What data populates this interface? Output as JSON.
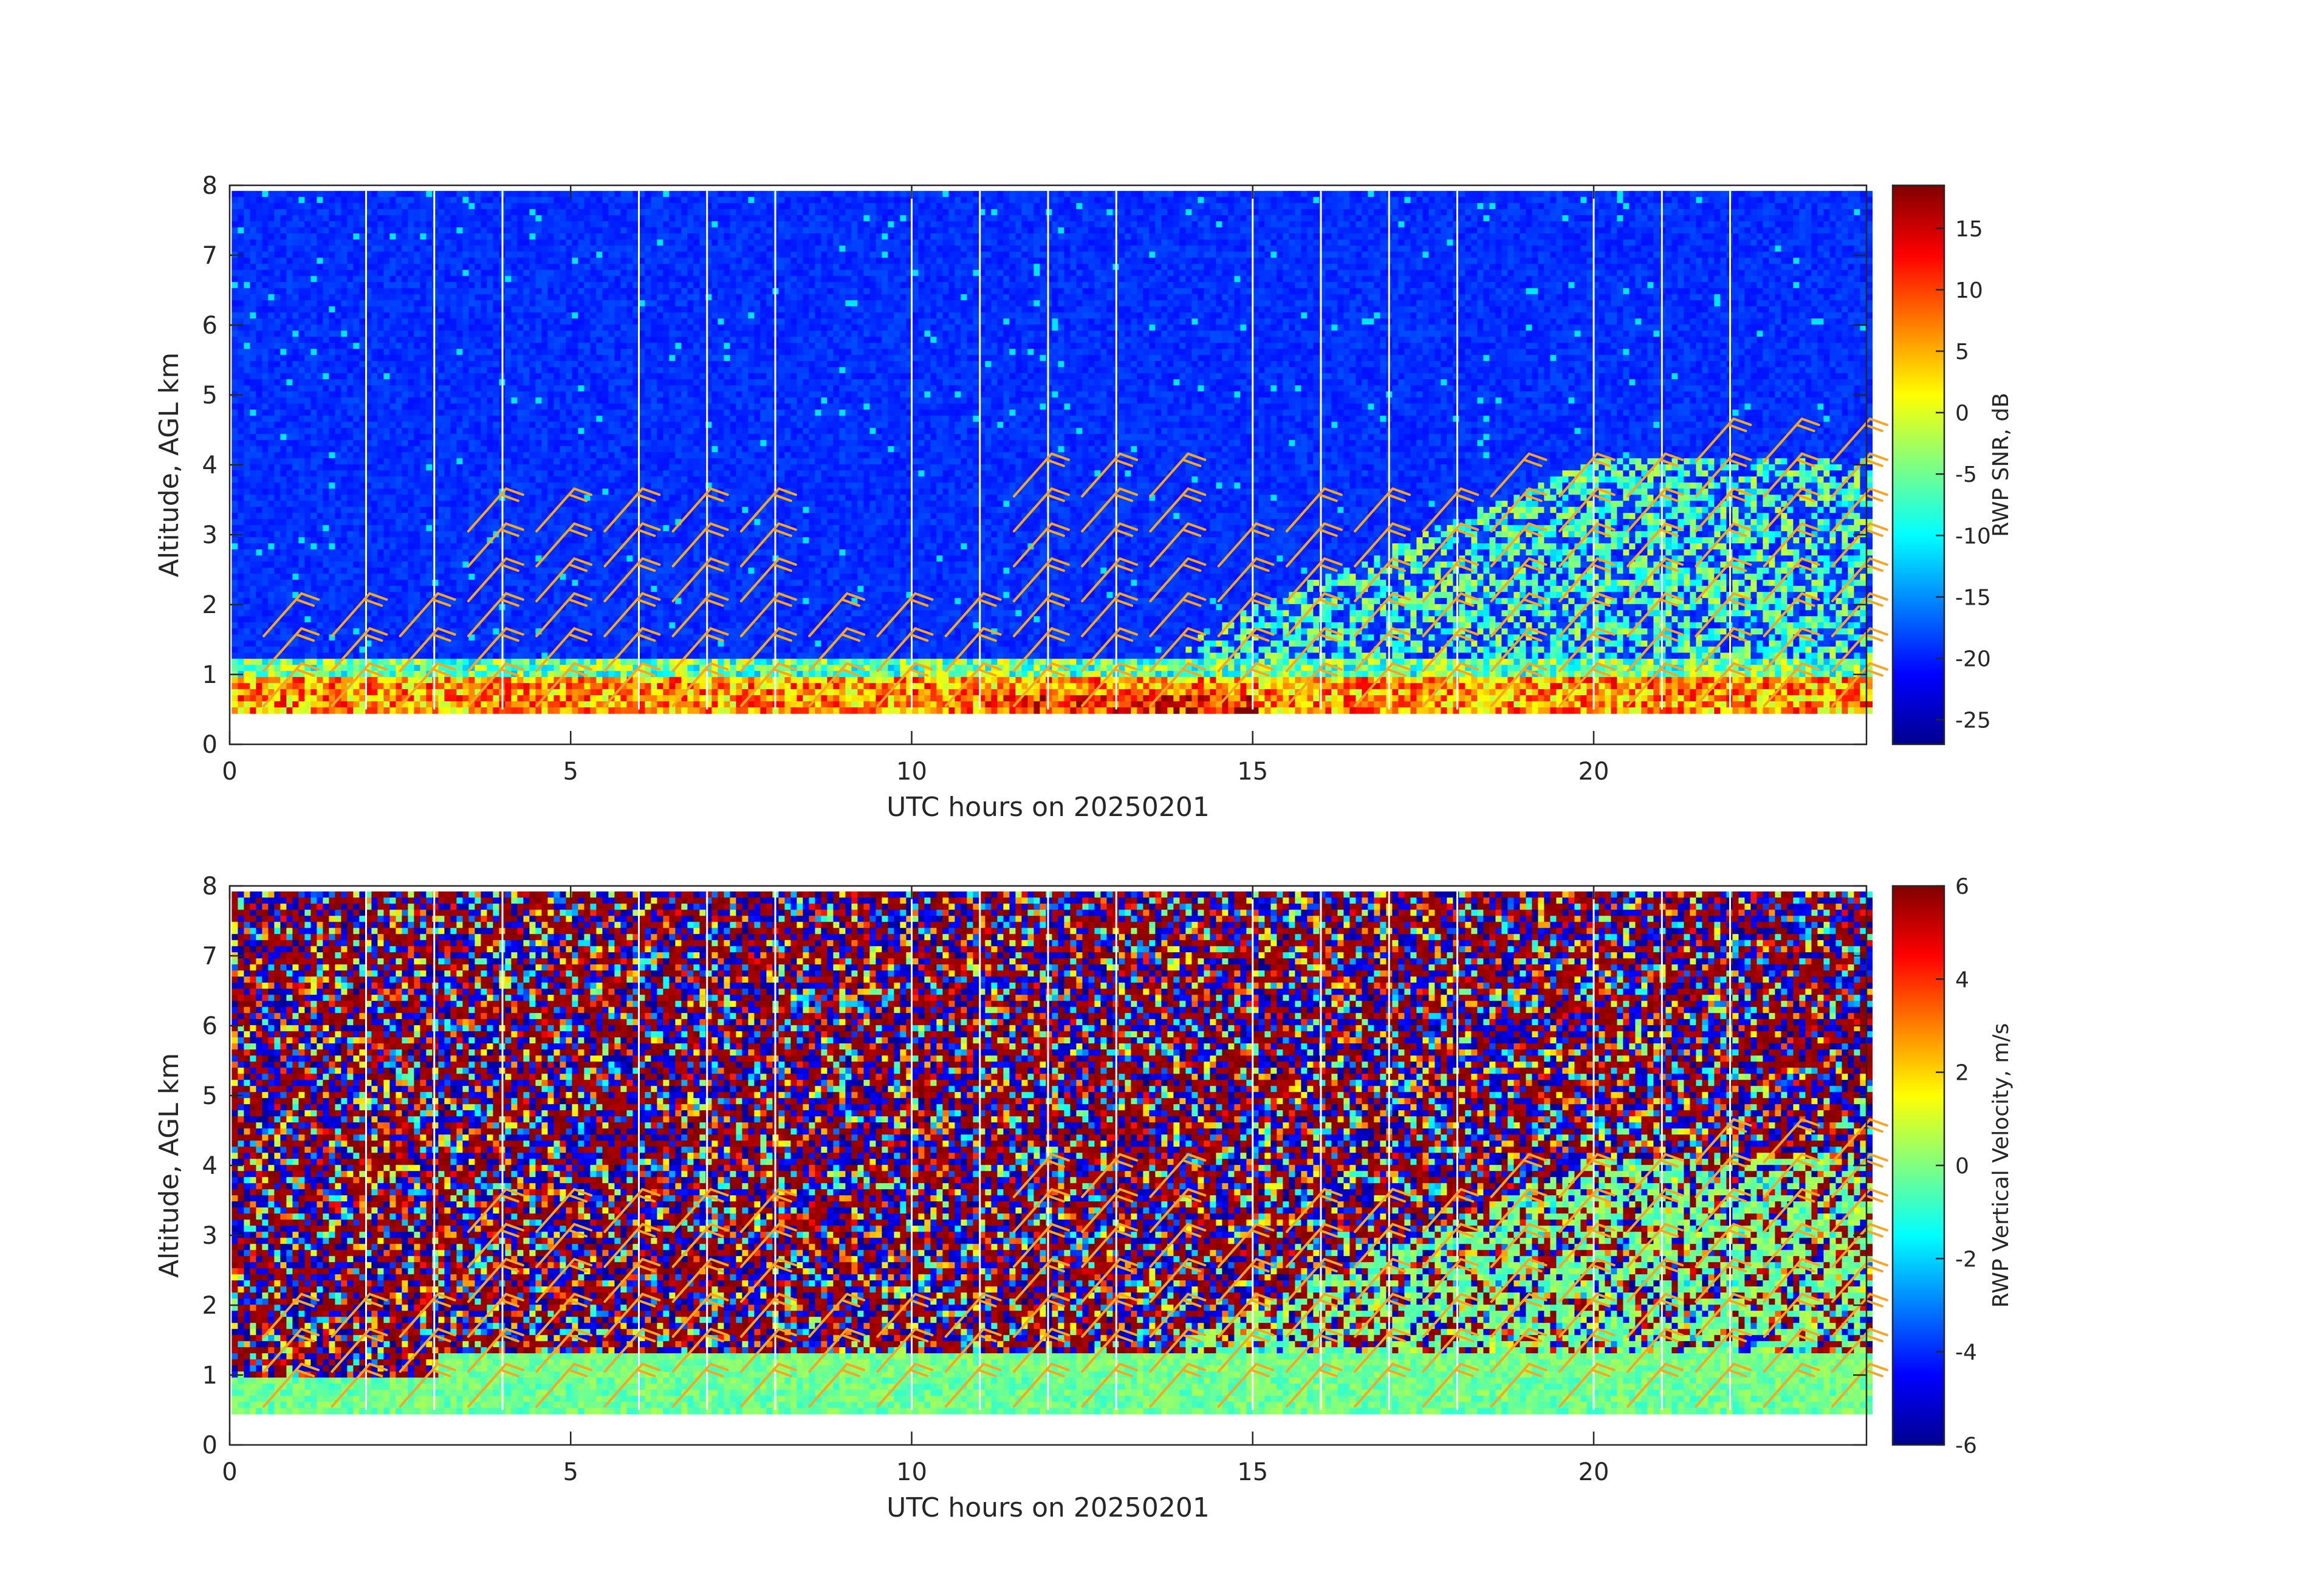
{
  "chart_data": [
    {
      "type": "heatmap",
      "ylabel": "Altitude, AGL km",
      "xlabel": "UTC hours on 20250201",
      "xlim": [
        0,
        24
      ],
      "ylim": [
        0,
        8
      ],
      "xticks": [
        "0",
        "5",
        "10",
        "15",
        "20"
      ],
      "yticks": [
        "0",
        "1",
        "2",
        "3",
        "4",
        "5",
        "6",
        "7",
        "8"
      ],
      "colorbar": {
        "label": "RWP SNR, dB",
        "range": [
          -27,
          18.5
        ],
        "ticks": [
          "-25",
          "-20",
          "-15",
          "-10",
          "-5",
          "0",
          "5",
          "10",
          "15"
        ]
      },
      "gaps_hours": [
        2,
        3,
        4,
        6,
        7,
        8,
        10,
        11,
        12,
        13,
        15,
        16,
        17,
        18,
        20,
        21,
        22
      ],
      "wind_barb_color": "#f5a623"
    },
    {
      "type": "heatmap",
      "ylabel": "Altitude, AGL km",
      "xlabel": "UTC hours on 20250201",
      "xlim": [
        0,
        24
      ],
      "ylim": [
        0,
        8
      ],
      "xticks": [
        "0",
        "5",
        "10",
        "15",
        "20"
      ],
      "yticks": [
        "0",
        "1",
        "2",
        "3",
        "4",
        "5",
        "6",
        "7",
        "8"
      ],
      "colorbar": {
        "label": "RWP Vertical Velocity, m/s",
        "range": [
          -6,
          6
        ],
        "ticks": [
          "-6",
          "-4",
          "-2",
          "0",
          "2",
          "4",
          "6"
        ]
      },
      "gaps_hours": [
        2,
        3,
        4,
        6,
        7,
        8,
        10,
        11,
        12,
        13,
        15,
        16,
        17,
        18,
        20,
        21,
        22
      ],
      "wind_barb_color": "#f5a623"
    }
  ]
}
